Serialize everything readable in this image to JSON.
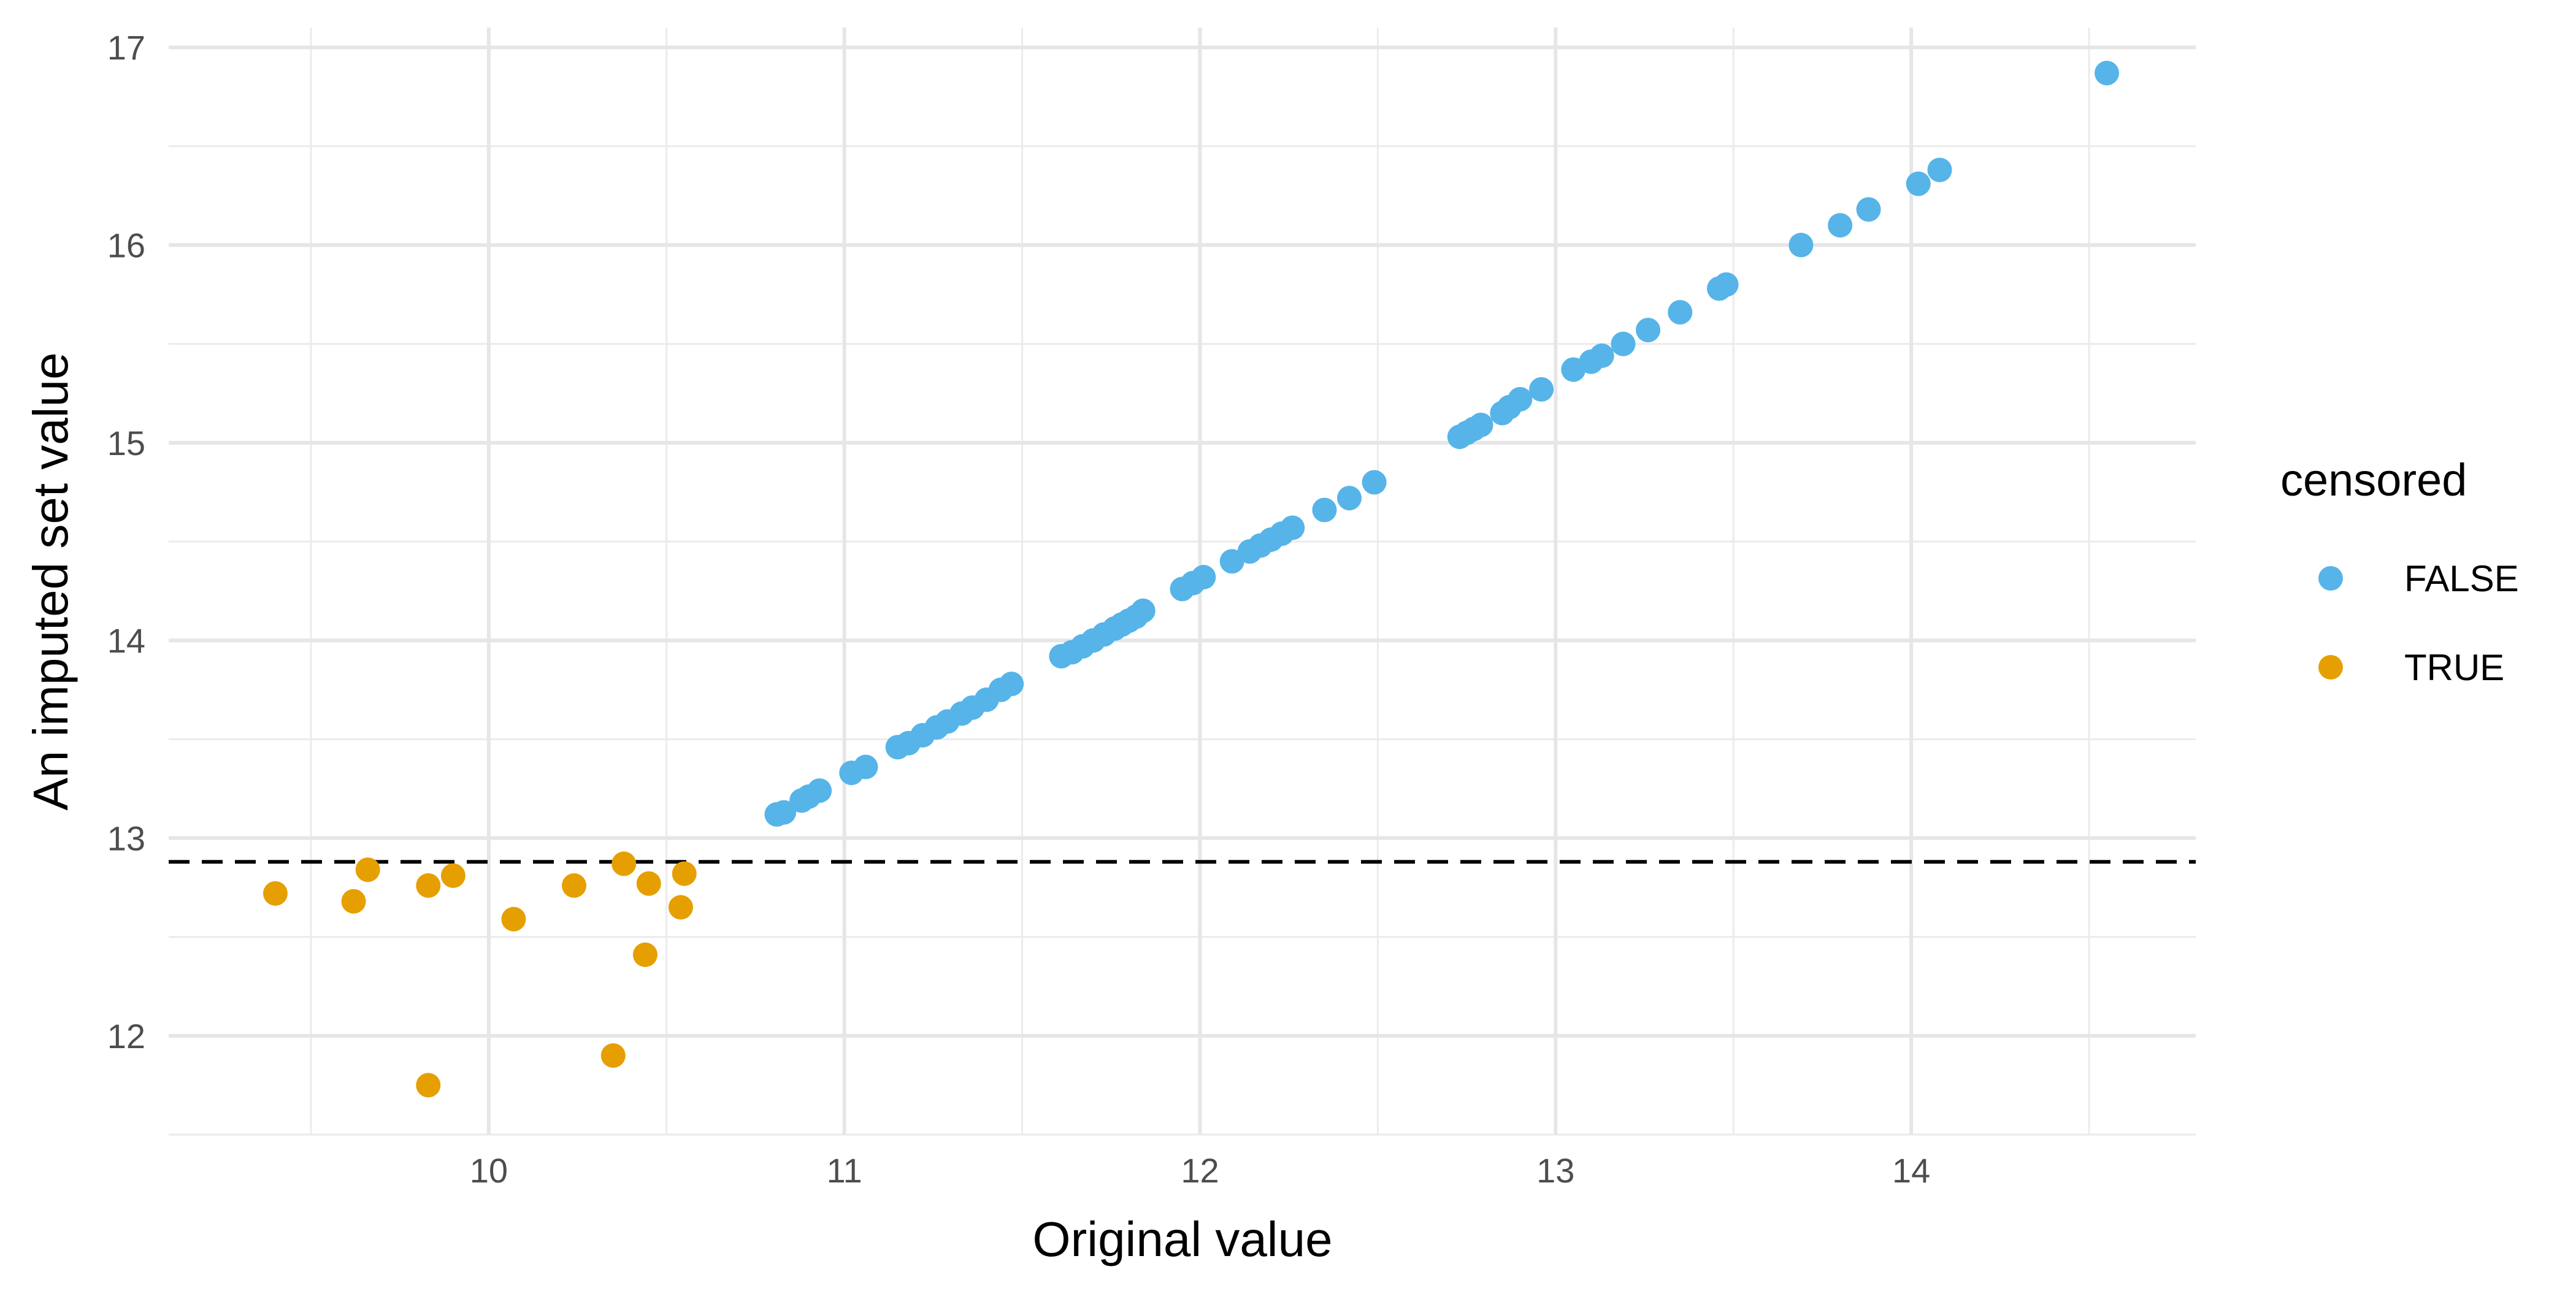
{
  "chart_data": {
    "type": "scatter",
    "xlabel": "Original value",
    "ylabel": "An imputed set value",
    "xlim": [
      9.1,
      14.8
    ],
    "ylim": [
      11.5,
      17.1
    ],
    "x_ticks": [
      "10",
      "11",
      "12",
      "13",
      "14"
    ],
    "y_ticks": [
      "12",
      "13",
      "14",
      "15",
      "16",
      "17"
    ],
    "x_tick_values": [
      10,
      11,
      12,
      13,
      14
    ],
    "y_tick_values": [
      12,
      13,
      14,
      15,
      16,
      17
    ],
    "grid": true,
    "threshold_line": {
      "y": 12.88,
      "style": "dashed"
    },
    "legend": {
      "title": "censored",
      "position": "right",
      "entries": [
        {
          "label": "FALSE",
          "color": "#56B4E9"
        },
        {
          "label": "TRUE",
          "color": "#E69F00"
        }
      ]
    },
    "series": [
      {
        "name": "FALSE",
        "color": "#56B4E9",
        "points": [
          [
            10.81,
            13.12
          ],
          [
            10.83,
            13.13
          ],
          [
            10.88,
            13.19
          ],
          [
            10.9,
            13.21
          ],
          [
            10.93,
            13.24
          ],
          [
            11.02,
            13.33
          ],
          [
            11.06,
            13.36
          ],
          [
            11.15,
            13.46
          ],
          [
            11.18,
            13.48
          ],
          [
            11.22,
            13.52
          ],
          [
            11.26,
            13.56
          ],
          [
            11.29,
            13.59
          ],
          [
            11.33,
            13.63
          ],
          [
            11.36,
            13.66
          ],
          [
            11.4,
            13.7
          ],
          [
            11.44,
            13.75
          ],
          [
            11.47,
            13.78
          ],
          [
            11.61,
            13.92
          ],
          [
            11.64,
            13.94
          ],
          [
            11.67,
            13.97
          ],
          [
            11.7,
            14.0
          ],
          [
            11.73,
            14.03
          ],
          [
            11.76,
            14.06
          ],
          [
            11.78,
            14.08
          ],
          [
            11.8,
            14.1
          ],
          [
            11.82,
            14.12
          ],
          [
            11.84,
            14.15
          ],
          [
            11.95,
            14.26
          ],
          [
            11.98,
            14.29
          ],
          [
            12.01,
            14.32
          ],
          [
            12.09,
            14.4
          ],
          [
            12.14,
            14.45
          ],
          [
            12.17,
            14.48
          ],
          [
            12.2,
            14.51
          ],
          [
            12.23,
            14.54
          ],
          [
            12.26,
            14.57
          ],
          [
            12.35,
            14.66
          ],
          [
            12.42,
            14.72
          ],
          [
            12.49,
            14.8
          ],
          [
            12.73,
            15.03
          ],
          [
            12.75,
            15.05
          ],
          [
            12.77,
            15.07
          ],
          [
            12.79,
            15.09
          ],
          [
            12.85,
            15.15
          ],
          [
            12.87,
            15.18
          ],
          [
            12.9,
            15.22
          ],
          [
            12.96,
            15.27
          ],
          [
            13.05,
            15.37
          ],
          [
            13.1,
            15.41
          ],
          [
            13.13,
            15.44
          ],
          [
            13.19,
            15.5
          ],
          [
            13.26,
            15.57
          ],
          [
            13.35,
            15.66
          ],
          [
            13.46,
            15.78
          ],
          [
            13.48,
            15.8
          ],
          [
            13.69,
            16.0
          ],
          [
            13.8,
            16.1
          ],
          [
            13.88,
            16.18
          ],
          [
            14.02,
            16.31
          ],
          [
            14.08,
            16.38
          ],
          [
            14.55,
            16.87
          ]
        ]
      },
      {
        "name": "TRUE",
        "color": "#E69F00",
        "points": [
          [
            9.4,
            12.72
          ],
          [
            9.62,
            12.68
          ],
          [
            9.66,
            12.84
          ],
          [
            9.83,
            12.76
          ],
          [
            9.9,
            12.81
          ],
          [
            10.07,
            12.59
          ],
          [
            10.24,
            12.76
          ],
          [
            10.38,
            12.87
          ],
          [
            10.45,
            12.77
          ],
          [
            10.55,
            12.82
          ],
          [
            10.54,
            12.65
          ],
          [
            10.44,
            12.41
          ],
          [
            10.35,
            11.9
          ],
          [
            9.83,
            11.75
          ]
        ]
      }
    ]
  }
}
